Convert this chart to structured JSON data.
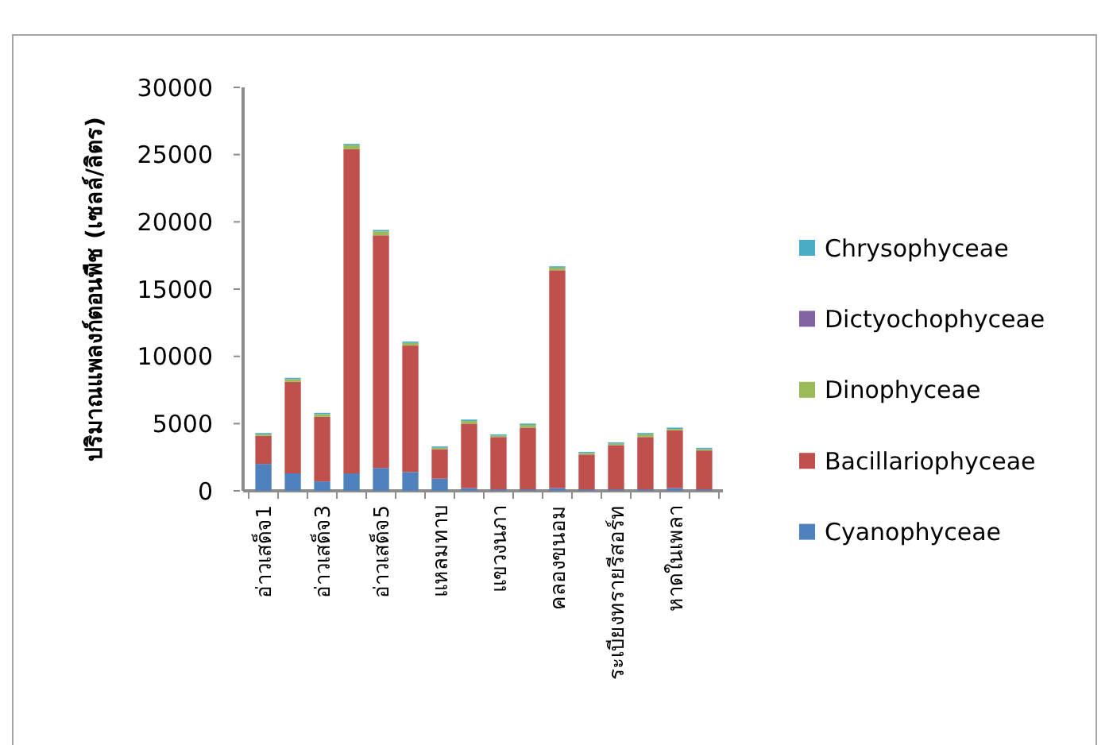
{
  "chart_data": {
    "type": "bar",
    "stacked": true,
    "ylabel": "ปริมาณแพลงก์ตอนพืช (เซลล์/ลิตร)",
    "categories": [
      "อ่าวเสด็จ1",
      null,
      "อ่าวเสด็จ3",
      null,
      "อ่าวเสด็จ5",
      null,
      "แหลมทาบ",
      null,
      "แขวงนภา",
      null,
      "คลองขนอม",
      null,
      "ระเบียงทรายรีสอร์ท",
      null,
      "หาดในเพลา",
      null
    ],
    "ylim": [
      0,
      30000
    ],
    "yticks": [
      0,
      5000,
      10000,
      15000,
      20000,
      25000,
      30000
    ],
    "grid": false,
    "legend": "right",
    "series": [
      {
        "name": "Cyanophyceae",
        "color": "#4f81bd",
        "values": [
          2000,
          1300,
          700,
          1300,
          1700,
          1400,
          900,
          200,
          100,
          100,
          200,
          100,
          100,
          100,
          200,
          100
        ]
      },
      {
        "name": "Bacillariophyceae",
        "color": "#c0504d",
        "values": [
          2100,
          6800,
          4800,
          24100,
          17300,
          9400,
          2200,
          4800,
          3900,
          4600,
          16200,
          2600,
          3300,
          3900,
          4300,
          2900
        ]
      },
      {
        "name": "Dinophyceae",
        "color": "#9bbb59",
        "values": [
          100,
          200,
          200,
          300,
          300,
          200,
          100,
          200,
          100,
          200,
          200,
          100,
          100,
          200,
          100,
          100
        ]
      },
      {
        "name": "Dictyochophyceae",
        "color": "#8064a2",
        "values": [
          0,
          0,
          0,
          0,
          0,
          0,
          0,
          0,
          0,
          0,
          0,
          0,
          0,
          0,
          0,
          0
        ]
      },
      {
        "name": "Chrysophyceae",
        "color": "#4bacc6",
        "values": [
          100,
          100,
          100,
          100,
          100,
          100,
          100,
          100,
          100,
          100,
          100,
          100,
          100,
          100,
          100,
          100
        ]
      }
    ]
  }
}
